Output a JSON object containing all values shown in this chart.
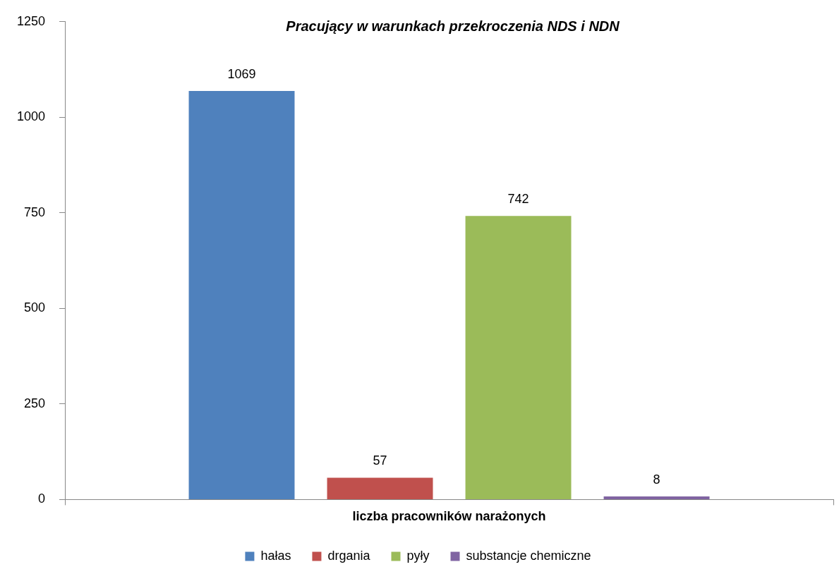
{
  "chart_data": {
    "type": "bar",
    "title": "Pracujący w warunkach przekroczenia NDS i NDN",
    "categories": [
      "liczba pracowników narażonych"
    ],
    "series": [
      {
        "name": "hałas",
        "color": "#4f81bd",
        "values": [
          1069
        ]
      },
      {
        "name": "drgania",
        "color": "#c0504d",
        "values": [
          57
        ]
      },
      {
        "name": "pyły",
        "color": "#9bbb59",
        "values": [
          742
        ]
      },
      {
        "name": "substancje chemiczne",
        "color": "#8064a2",
        "values": [
          8
        ]
      }
    ],
    "ylim": [
      0,
      1250
    ],
    "yticks": [
      0,
      250,
      500,
      750,
      1000,
      1250
    ],
    "grid": false,
    "legend": "bottom",
    "data_labels": true
  }
}
